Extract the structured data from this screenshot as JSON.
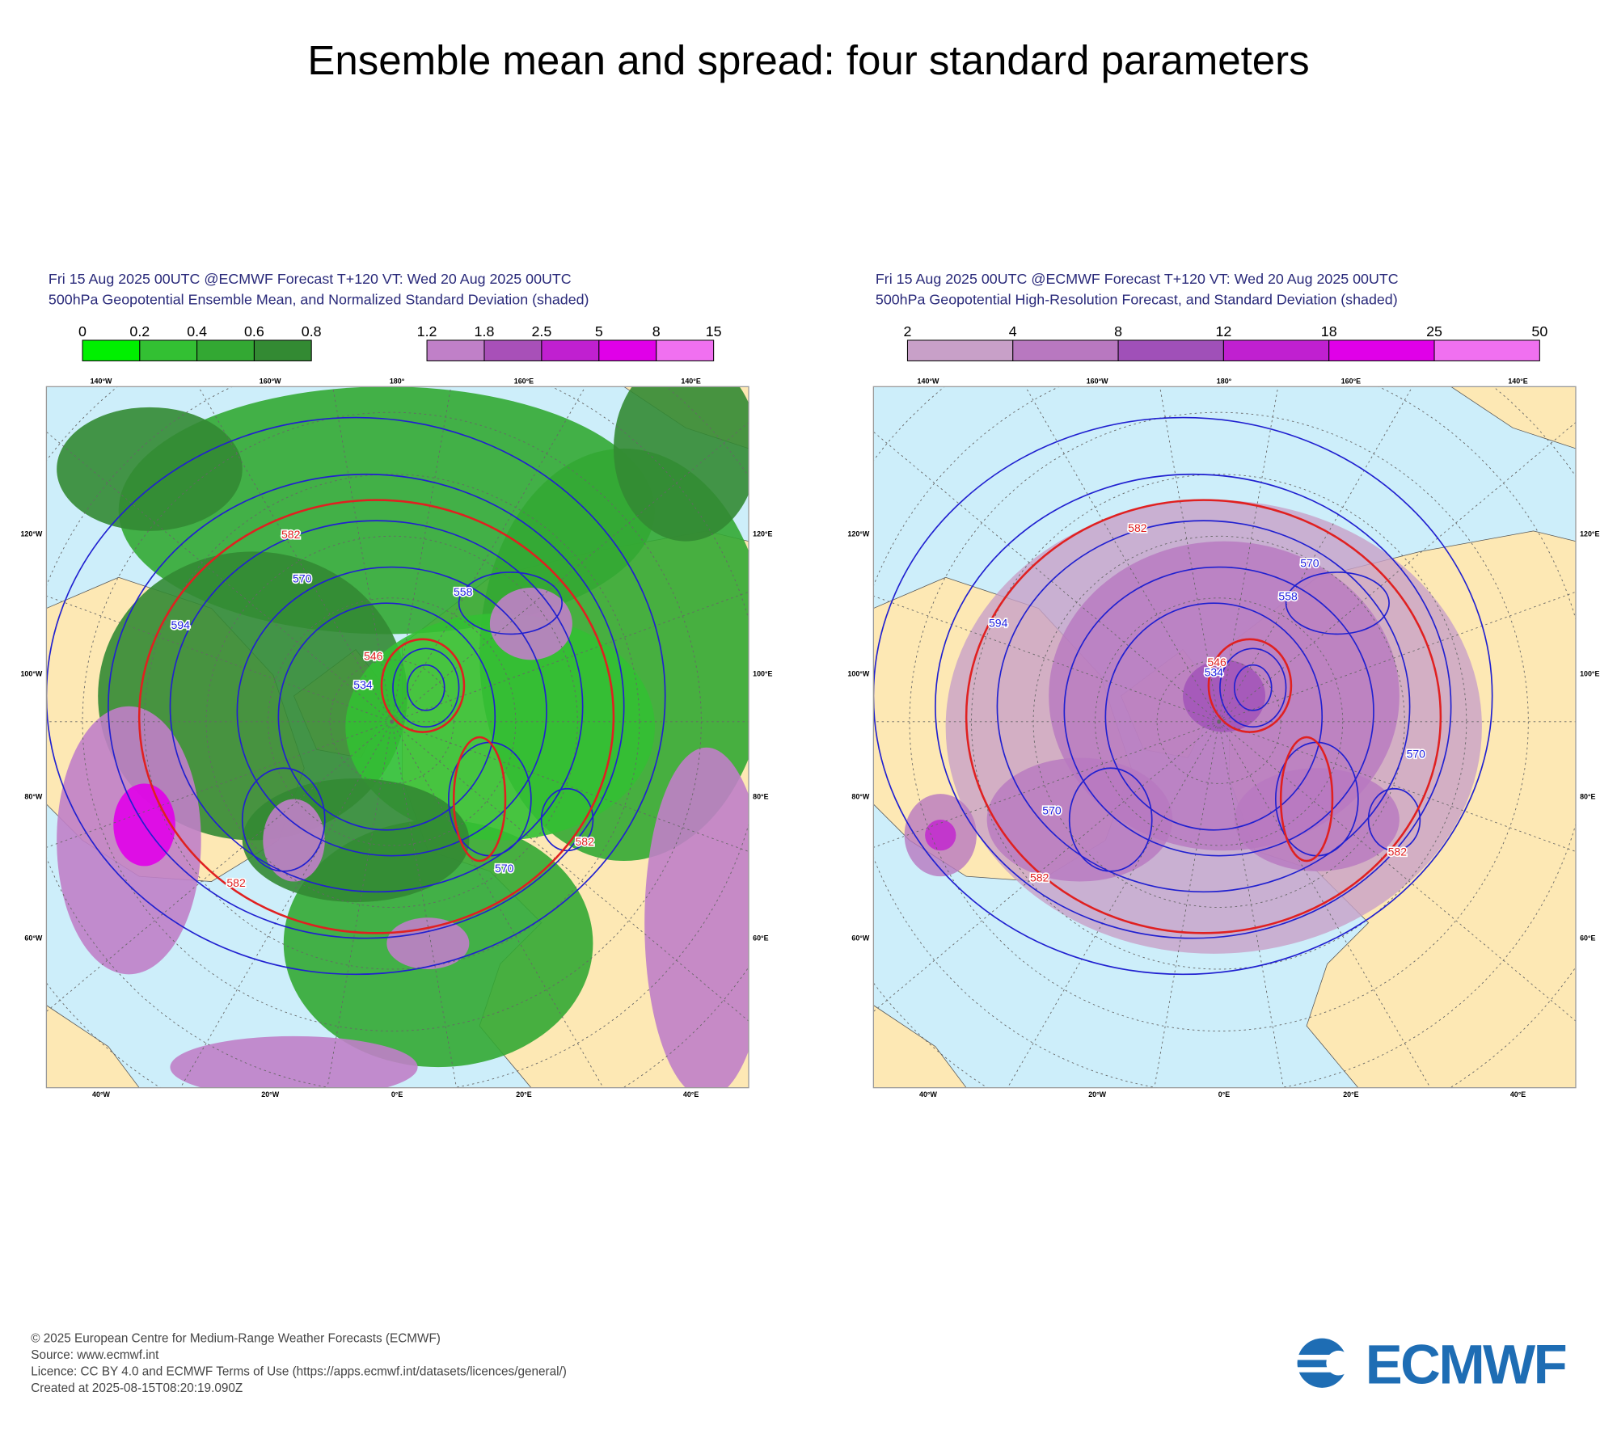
{
  "title": "Ensemble mean and spread: four standard parameters",
  "graticule": {
    "top": [
      "140°W",
      "160°W",
      "180°",
      "160°E",
      "140°E"
    ],
    "left": [
      "120°W",
      "100°W",
      "80°W",
      "60°W"
    ],
    "right": [
      "120°E",
      "100°E",
      "80°E",
      "60°E"
    ],
    "bottom": [
      "40°W",
      "20°W",
      "0°E",
      "20°E",
      "40°E"
    ]
  },
  "panels": [
    {
      "header": [
        "Fri 15 Aug 2025 00UTC @ECMWF Forecast T+120 VT: Wed 20 Aug 2025 00UTC",
        "500hPa Geopotential Ensemble Mean, and Normalized Standard Deviation (shaded)"
      ],
      "colorbars": [
        {
          "labels": [
            "0",
            "0.2",
            "0.4",
            "0.6",
            "0.8"
          ],
          "colors": [
            "#00f000",
            "#33c033",
            "#33a833",
            "#338a33"
          ]
        },
        {
          "labels": [
            "1.2",
            "1.8",
            "2.5",
            "5",
            "8",
            "15"
          ],
          "colors": [
            "#c080c8",
            "#a850b8",
            "#c020d0",
            "#e000e8",
            "#f070f0"
          ]
        }
      ],
      "contour_labels": [
        {
          "text": "582",
          "color": "#e02020"
        },
        {
          "text": "570",
          "color": "#2020e0"
        },
        {
          "text": "594",
          "color": "#2020e0"
        },
        {
          "text": "546",
          "color": "#e02020"
        },
        {
          "text": "534",
          "color": "#2020e0"
        },
        {
          "text": "558",
          "color": "#2020e0"
        },
        {
          "text": "582",
          "color": "#e02020"
        },
        {
          "text": "570",
          "color": "#2020e0"
        },
        {
          "text": "582",
          "color": "#e02020"
        }
      ]
    },
    {
      "header": [
        "Fri 15 Aug 2025 00UTC @ECMWF Forecast T+120 VT: Wed 20 Aug 2025 00UTC",
        "500hPa Geopotential High-Resolution Forecast, and Standard Deviation (shaded)"
      ],
      "colorbars": [
        {
          "labels": [
            "2",
            "4",
            "8",
            "12",
            "18",
            "25",
            "50"
          ],
          "colors": [
            "#c8a0c8",
            "#b878c0",
            "#a050b8",
            "#c020d0",
            "#e000e8",
            "#f070f0"
          ]
        }
      ],
      "contour_labels": [
        {
          "text": "582",
          "color": "#e02020"
        },
        {
          "text": "570",
          "color": "#2020e0"
        },
        {
          "text": "558",
          "color": "#2020e0"
        },
        {
          "text": "594",
          "color": "#2020e0"
        },
        {
          "text": "546",
          "color": "#e02020"
        },
        {
          "text": "534",
          "color": "#2020e0"
        },
        {
          "text": "570",
          "color": "#2020e0"
        },
        {
          "text": "582",
          "color": "#e02020"
        },
        {
          "text": "582",
          "color": "#e02020"
        },
        {
          "text": "570",
          "color": "#2020e0"
        }
      ]
    }
  ],
  "footer": [
    "© 2025 European Centre for Medium-Range Weather Forecasts (ECMWF)",
    "Source: www.ecmwf.int",
    "Licence: CC BY 4.0 and ECMWF Terms of Use (https://apps.ecmwf.int/datasets/licences/general/)",
    "Created at 2025-08-15T08:20:19.090Z"
  ],
  "logo": "ECMWF"
}
